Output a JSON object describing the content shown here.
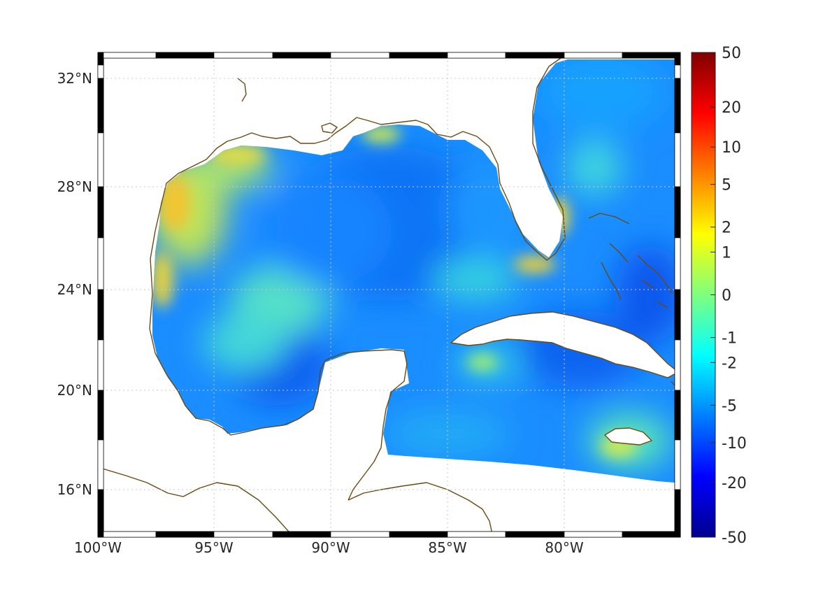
{
  "map": {
    "lon_labels": [
      "100°W",
      "95°W",
      "90°W",
      "85°W",
      "80°W"
    ],
    "lat_labels": [
      "32°N",
      "28°N",
      "24°N",
      "20°N",
      "16°N"
    ],
    "grid": true
  },
  "colorbar": {
    "tick_labels": [
      "50",
      "20",
      "10",
      "5",
      "2",
      "1",
      "0",
      "-1",
      "-2",
      "-5",
      "-10",
      "-20",
      "-50"
    ],
    "colormap": "jet",
    "colors": [
      "#00008f",
      "#0000ff",
      "#007fff",
      "#00ffff",
      "#7fff7f",
      "#ffff00",
      "#ff7f00",
      "#ff0000",
      "#800000"
    ]
  },
  "chart_data": {
    "type": "heatmap",
    "title": "",
    "xlabel": "",
    "ylabel": "",
    "xlim": [
      -100,
      -75
    ],
    "ylim": [
      14.5,
      33
    ],
    "x_ticks": [
      -100,
      -95,
      -90,
      -85,
      -80
    ],
    "y_ticks": [
      32,
      28,
      24,
      20,
      16
    ],
    "colorbar_ticks": [
      50,
      20,
      10,
      5,
      2,
      1,
      0,
      -1,
      -2,
      -5,
      -10,
      -20,
      -50
    ],
    "colorbar_range": [
      -50,
      50
    ],
    "field_regions": [
      {
        "region": "northwest Gulf shelf (Texas/Louisiana coast)",
        "value": 3
      },
      {
        "region": "western Gulf coast (Mexico)",
        "value": 2
      },
      {
        "region": "central Gulf",
        "value": -4
      },
      {
        "region": "Bay of Campeche",
        "value": -7
      },
      {
        "region": "southwest Florida / Florida Keys",
        "value": 2
      },
      {
        "region": "Atlantic east of Florida",
        "value": -3
      },
      {
        "region": "Caribbean south of Cuba",
        "value": -4
      },
      {
        "region": "Jamaica vicinity",
        "value": 1
      },
      {
        "region": "Bahamas banks",
        "value": -7
      }
    ]
  }
}
